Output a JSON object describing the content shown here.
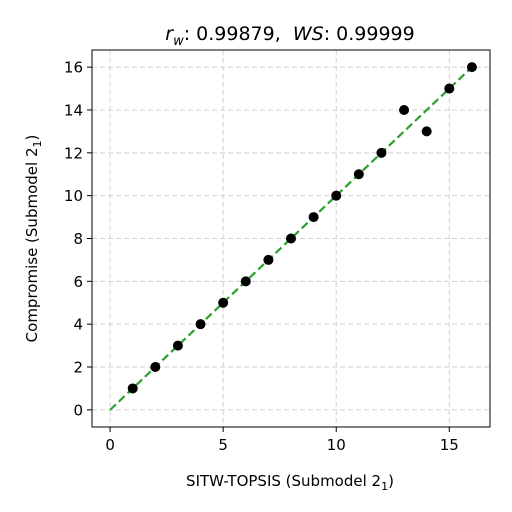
{
  "chart_data": {
    "type": "scatter",
    "title": {
      "rw_symbol": "r",
      "rw_subscript": "w",
      "rw_value": ": 0.99879,  ",
      "ws_symbol": "WS",
      "ws_value": ": 0.99999"
    },
    "xlabel": {
      "text": "SITW-TOPSIS (Submodel 2",
      "subscript": "1",
      "suffix": ")"
    },
    "ylabel": {
      "text": "Compromise (Submodel 2",
      "subscript": "1",
      "suffix": ")"
    },
    "xlim": [
      -0.8,
      16.8
    ],
    "ylim": [
      -0.8,
      16.8
    ],
    "xticks": [
      0,
      5,
      10,
      15
    ],
    "yticks": [
      0,
      2,
      4,
      6,
      8,
      10,
      12,
      14,
      16
    ],
    "grid": true,
    "series": [
      {
        "kind": "points",
        "color": "#000000",
        "x": [
          1,
          2,
          3,
          4,
          5,
          6,
          7,
          8,
          9,
          10,
          11,
          12,
          13,
          14,
          15,
          16
        ],
        "y": [
          1,
          2,
          3,
          4,
          5,
          6,
          7,
          8,
          9,
          10,
          11,
          12,
          14,
          13,
          15,
          16
        ]
      },
      {
        "kind": "reference-line",
        "color": "#2ca02c",
        "style": "dashed",
        "x": [
          0,
          16
        ],
        "y": [
          0,
          16
        ]
      }
    ]
  }
}
